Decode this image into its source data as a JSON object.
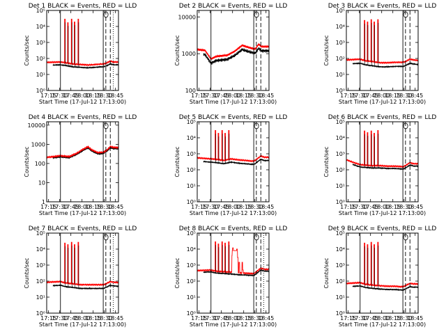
{
  "x_tick_labels": [
    "17:15",
    "17:30",
    "17:45",
    "18:00",
    "18:15",
    "18:30",
    "18:45"
  ],
  "xlabel": "Start Time (17-Jul-12 17:13:00)",
  "ylabel": "Counts/sec",
  "colors": {
    "events": "#000000",
    "lld": "#ff0000"
  },
  "chart_data": [
    {
      "type": "line",
      "title": "Det 1  BLACK = Events,  RED = LLD",
      "yscale": "log",
      "ylim": [
        1,
        100000
      ],
      "y_ticks": [
        "10⁰",
        "10¹",
        "10²",
        "10³",
        "10⁴",
        "10⁵"
      ],
      "xlim_minutes": [
        -0.5,
        96
      ],
      "vlines": {
        "solid": [
          18,
          75.5
        ],
        "dashed": [
          79,
          85
        ],
        "dotted": [
          89
        ]
      },
      "base_curve": [
        [
          -0.5,
          38
        ],
        [
          18,
          40
        ],
        [
          25,
          36
        ],
        [
          35,
          30
        ],
        [
          45,
          28
        ],
        [
          55,
          26
        ],
        [
          65,
          28
        ],
        [
          72,
          30
        ],
        [
          76,
          30
        ],
        [
          80,
          35
        ],
        [
          85,
          45
        ],
        [
          90,
          40
        ],
        [
          96,
          40
        ]
      ],
      "lld_ratio": 1.5,
      "lld_start": -0.5,
      "events_start": 8,
      "spikes": [
        [
          24,
          30000
        ],
        [
          28,
          18000
        ],
        [
          33,
          30000
        ],
        [
          37,
          20000
        ],
        [
          42,
          30000
        ]
      ],
      "special": []
    },
    {
      "type": "line",
      "title": "Det 2  BLACK = Events,  RED = LLD",
      "yscale": "log",
      "ylim": [
        100,
        15000
      ],
      "y_ticks": [
        "100",
        "1000",
        "10000"
      ],
      "xlim_minutes": [
        -0.5,
        96
      ],
      "vlines": {
        "solid": [
          18,
          75.5
        ],
        "dashed": [
          79,
          85
        ],
        "dotted": []
      },
      "base_curve": [
        [
          -0.5,
          1000
        ],
        [
          10,
          950
        ],
        [
          18,
          550
        ],
        [
          25,
          650
        ],
        [
          40,
          700
        ],
        [
          50,
          900
        ],
        [
          60,
          1300
        ],
        [
          68,
          1150
        ],
        [
          75,
          1050
        ],
        [
          78,
          1050
        ],
        [
          82,
          1400
        ],
        [
          86,
          1200
        ],
        [
          96,
          1200
        ]
      ],
      "lld_ratio": 1.3,
      "lld_start": -0.5,
      "events_start": 8,
      "spikes": [],
      "special": []
    },
    {
      "type": "line",
      "title": "Det 3  BLACK = Events,  RED = LLD",
      "yscale": "log",
      "ylim": [
        1,
        100000
      ],
      "y_ticks": [
        "10⁰",
        "10¹",
        "10²",
        "10³",
        "10⁴",
        "10⁵"
      ],
      "xlim_minutes": [
        -0.5,
        96
      ],
      "vlines": {
        "solid": [
          18,
          75.5
        ],
        "dashed": [
          79,
          85
        ],
        "dotted": []
      },
      "base_curve": [
        [
          -0.5,
          45
        ],
        [
          18,
          50
        ],
        [
          25,
          40
        ],
        [
          35,
          35
        ],
        [
          45,
          30
        ],
        [
          55,
          30
        ],
        [
          65,
          32
        ],
        [
          72,
          32
        ],
        [
          76,
          32
        ],
        [
          80,
          38
        ],
        [
          85,
          50
        ],
        [
          90,
          45
        ],
        [
          96,
          42
        ]
      ],
      "lld_ratio": 1.8,
      "lld_start": -0.5,
      "events_start": 8,
      "spikes": [
        [
          24,
          25000
        ],
        [
          28,
          20000
        ],
        [
          33,
          28000
        ],
        [
          37,
          20000
        ],
        [
          42,
          28000
        ]
      ],
      "special": []
    },
    {
      "type": "line",
      "title": "Det 4  BLACK = Events,  RED = LLD",
      "yscale": "log",
      "ylim": [
        1,
        15000
      ],
      "y_ticks": [
        "1",
        "10",
        "100",
        "1000",
        "10000"
      ],
      "xlim_minutes": [
        -0.5,
        96
      ],
      "vlines": {
        "solid": [
          18,
          75.5
        ],
        "dashed": [
          79,
          85
        ],
        "dotted": []
      },
      "base_curve": [
        [
          -0.5,
          180
        ],
        [
          18,
          220
        ],
        [
          30,
          200
        ],
        [
          40,
          300
        ],
        [
          50,
          520
        ],
        [
          55,
          650
        ],
        [
          60,
          450
        ],
        [
          68,
          320
        ],
        [
          75,
          330
        ],
        [
          80,
          420
        ],
        [
          85,
          650
        ],
        [
          90,
          600
        ],
        [
          96,
          580
        ]
      ],
      "lld_ratio": 1.15,
      "lld_start": -0.5,
      "events_start": 8,
      "spikes": [],
      "special": []
    },
    {
      "type": "line",
      "title": "Det 5  BLACK = Events,  RED = LLD",
      "yscale": "log",
      "ylim": [
        1,
        100000
      ],
      "y_ticks": [
        "10⁰",
        "10¹",
        "10²",
        "10³",
        "10⁴",
        "10⁵"
      ],
      "xlim_minutes": [
        -0.5,
        96
      ],
      "vlines": {
        "solid": [
          18,
          75.5
        ],
        "dashed": [
          79,
          85
        ],
        "dotted": []
      },
      "base_curve": [
        [
          -0.5,
          350
        ],
        [
          18,
          300
        ],
        [
          25,
          280
        ],
        [
          35,
          240
        ],
        [
          45,
          300
        ],
        [
          55,
          260
        ],
        [
          65,
          240
        ],
        [
          72,
          220
        ],
        [
          76,
          220
        ],
        [
          80,
          300
        ],
        [
          85,
          450
        ],
        [
          90,
          380
        ],
        [
          96,
          380
        ]
      ],
      "lld_ratio": 1.6,
      "lld_start": -0.5,
      "events_start": 8,
      "spikes": [
        [
          24,
          30000
        ],
        [
          28,
          20000
        ],
        [
          33,
          30000
        ],
        [
          37,
          20000
        ],
        [
          42,
          30000
        ]
      ],
      "special": []
    },
    {
      "type": "line",
      "title": "Det 6  BLACK = Events,  RED = LLD",
      "yscale": "log",
      "ylim": [
        1,
        100000
      ],
      "y_ticks": [
        "10⁰",
        "10¹",
        "10²",
        "10³",
        "10⁴",
        "10⁵"
      ],
      "xlim_minutes": [
        -0.5,
        96
      ],
      "vlines": {
        "solid": [
          18,
          75.5
        ],
        "dashed": [
          79,
          85
        ],
        "dotted": []
      },
      "base_curve": [
        [
          -0.5,
          300
        ],
        [
          10,
          200
        ],
        [
          18,
          150
        ],
        [
          25,
          140
        ],
        [
          35,
          130
        ],
        [
          45,
          130
        ],
        [
          55,
          120
        ],
        [
          65,
          120
        ],
        [
          72,
          115
        ],
        [
          76,
          110
        ],
        [
          80,
          140
        ],
        [
          85,
          200
        ],
        [
          90,
          170
        ],
        [
          96,
          170
        ]
      ],
      "lld_ratio": 1.4,
      "lld_start": -0.5,
      "events_start": 8,
      "spikes": [
        [
          24,
          28000
        ],
        [
          28,
          22000
        ],
        [
          33,
          28000
        ],
        [
          37,
          20000
        ],
        [
          42,
          30000
        ]
      ],
      "special": []
    },
    {
      "type": "line",
      "title": "Det 7  BLACK = Events,  RED = LLD",
      "yscale": "log",
      "ylim": [
        1,
        100000
      ],
      "y_ticks": [
        "10⁰",
        "10¹",
        "10²",
        "10³",
        "10⁴",
        "10⁵"
      ],
      "xlim_minutes": [
        -0.5,
        96
      ],
      "vlines": {
        "solid": [
          18,
          75.5
        ],
        "dashed": [
          79,
          85
        ],
        "dotted": [
          89
        ]
      },
      "base_curve": [
        [
          -0.5,
          50
        ],
        [
          18,
          55
        ],
        [
          25,
          45
        ],
        [
          35,
          40
        ],
        [
          45,
          35
        ],
        [
          55,
          35
        ],
        [
          65,
          35
        ],
        [
          72,
          35
        ],
        [
          76,
          35
        ],
        [
          80,
          42
        ],
        [
          85,
          55
        ],
        [
          90,
          50
        ],
        [
          96,
          48
        ]
      ],
      "lld_ratio": 1.7,
      "lld_start": -0.5,
      "events_start": 8,
      "spikes": [
        [
          24,
          25000
        ],
        [
          28,
          20000
        ],
        [
          33,
          28000
        ],
        [
          37,
          20000
        ],
        [
          42,
          28000
        ]
      ],
      "special": []
    },
    {
      "type": "line",
      "title": "Det 8  BLACK = Events,  RED = LLD",
      "yscale": "log",
      "ylim": [
        1,
        100000
      ],
      "y_ticks": [
        "10⁰",
        "10¹",
        "10²",
        "10³",
        "10⁴",
        "10⁵"
      ],
      "xlim_minutes": [
        -0.5,
        96
      ],
      "vlines": {
        "solid": [
          18,
          75.5
        ],
        "dashed": [
          79,
          85
        ],
        "dotted": [
          89
        ]
      },
      "base_curve": [
        [
          -0.5,
          350
        ],
        [
          18,
          380
        ],
        [
          25,
          320
        ],
        [
          35,
          300
        ],
        [
          45,
          280
        ],
        [
          55,
          250
        ],
        [
          65,
          240
        ],
        [
          72,
          230
        ],
        [
          76,
          230
        ],
        [
          80,
          320
        ],
        [
          85,
          500
        ],
        [
          90,
          420
        ],
        [
          96,
          420
        ]
      ],
      "lld_ratio": 1.3,
      "lld_start": -0.5,
      "events_start": 8,
      "spikes": [
        [
          24,
          30000
        ],
        [
          28,
          22000
        ],
        [
          33,
          30000
        ],
        [
          37,
          25000
        ],
        [
          42,
          30000
        ]
      ],
      "special": [
        [
          46.5,
          4000
        ],
        [
          47.5,
          12000
        ],
        [
          53,
          10000
        ],
        [
          54,
          3000
        ],
        [
          56,
          1500
        ],
        [
          60,
          1500
        ],
        [
          61,
          500
        ]
      ]
    },
    {
      "type": "line",
      "title": "Det 9  BLACK = Events,  RED = LLD",
      "yscale": "log",
      "ylim": [
        1,
        100000
      ],
      "y_ticks": [
        "10⁰",
        "10¹",
        "10²",
        "10³",
        "10⁴",
        "10⁵"
      ],
      "xlim_minutes": [
        -0.5,
        96
      ],
      "vlines": {
        "solid": [
          18,
          75.5
        ],
        "dashed": [
          79,
          85
        ],
        "dotted": []
      },
      "base_curve": [
        [
          -0.5,
          45
        ],
        [
          18,
          50
        ],
        [
          25,
          40
        ],
        [
          35,
          35
        ],
        [
          45,
          32
        ],
        [
          55,
          30
        ],
        [
          65,
          30
        ],
        [
          72,
          28
        ],
        [
          76,
          28
        ],
        [
          80,
          35
        ],
        [
          85,
          45
        ],
        [
          90,
          42
        ],
        [
          96,
          42
        ]
      ],
      "lld_ratio": 1.6,
      "lld_start": -0.5,
      "events_start": 8,
      "spikes": [
        [
          24,
          25000
        ],
        [
          28,
          20000
        ],
        [
          33,
          28000
        ],
        [
          37,
          20000
        ],
        [
          42,
          28000
        ]
      ],
      "special": []
    }
  ]
}
